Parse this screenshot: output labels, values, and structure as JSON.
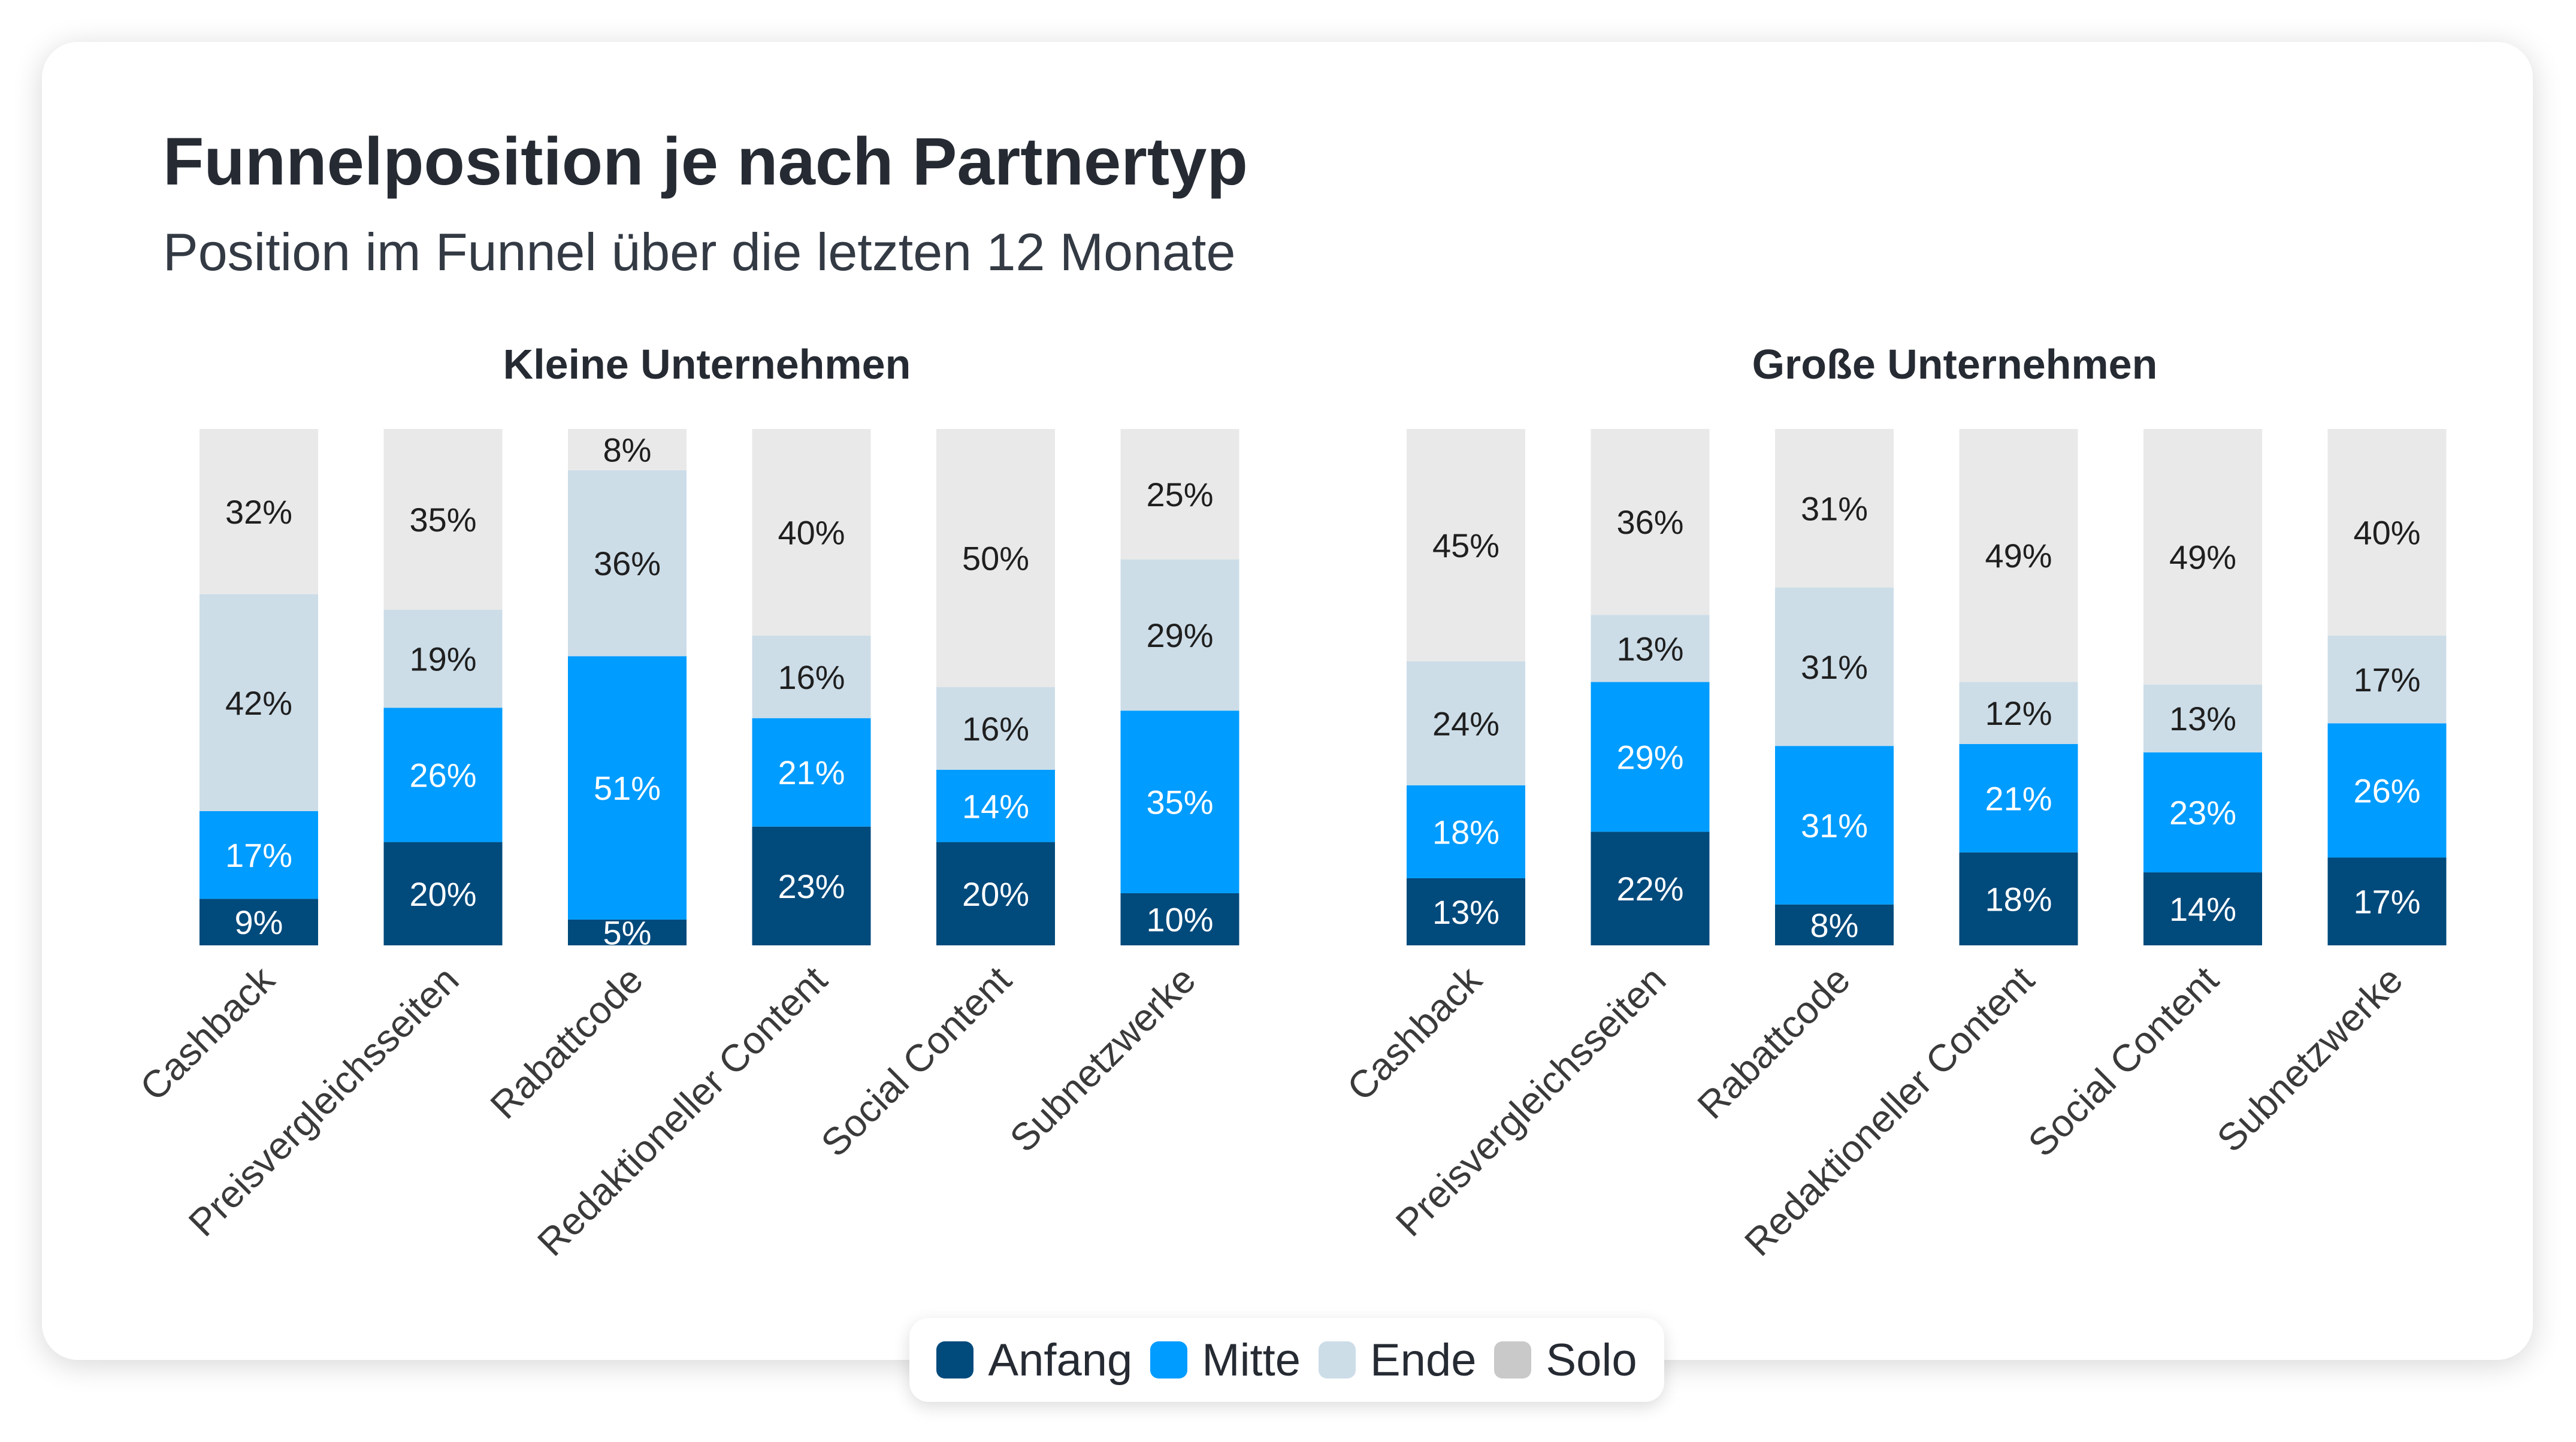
{
  "title": "Funnelposition je nach Partnertyp",
  "subtitle": "Position im Funnel über die letzten 12 Monate",
  "colors": {
    "Anfang": "#004a7c",
    "Mitte": "#009cff",
    "Ende": "#ccdde8",
    "Solo": "#e9e9e9",
    "legend_solo": "#c9c9c9",
    "label_dark": "#1f1f1f",
    "label_light": "#ffffff"
  },
  "legend": [
    {
      "label": "Anfang",
      "color": "#004a7c"
    },
    {
      "label": "Mitte",
      "color": "#009cff"
    },
    {
      "label": "Ende",
      "color": "#ccdde8"
    },
    {
      "label": "Solo",
      "color": "#c9c9c9"
    }
  ],
  "chart_data": [
    {
      "type": "bar",
      "stacked": true,
      "title": "Kleine Unternehmen",
      "categories": [
        "Cashback",
        "Preisvergleichsseiten",
        "Rabattcode",
        "Redaktioneller Content",
        "Social Content",
        "Subnetzwerke"
      ],
      "series": [
        {
          "name": "Anfang",
          "values": [
            9,
            20,
            5,
            23,
            20,
            10
          ]
        },
        {
          "name": "Mitte",
          "values": [
            17,
            26,
            51,
            21,
            14,
            35
          ]
        },
        {
          "name": "Ende",
          "values": [
            42,
            19,
            36,
            16,
            16,
            29
          ]
        },
        {
          "name": "Solo",
          "values": [
            32,
            35,
            8,
            40,
            50,
            25
          ]
        }
      ],
      "ylim": [
        0,
        100
      ],
      "grid": false,
      "legend": "bottom"
    },
    {
      "type": "bar",
      "stacked": true,
      "title": "Große Unternehmen",
      "categories": [
        "Cashback",
        "Preisvergleichsseiten",
        "Rabattcode",
        "Redaktioneller Content",
        "Social Content",
        "Subnetzwerke"
      ],
      "series": [
        {
          "name": "Anfang",
          "values": [
            13,
            22,
            8,
            18,
            14,
            17
          ]
        },
        {
          "name": "Mitte",
          "values": [
            18,
            29,
            31,
            21,
            23,
            26
          ]
        },
        {
          "name": "Ende",
          "values": [
            24,
            13,
            31,
            12,
            13,
            17
          ]
        },
        {
          "name": "Solo",
          "values": [
            45,
            36,
            31,
            49,
            49,
            40
          ]
        }
      ],
      "ylim": [
        0,
        100
      ],
      "grid": false,
      "legend": "bottom"
    }
  ]
}
